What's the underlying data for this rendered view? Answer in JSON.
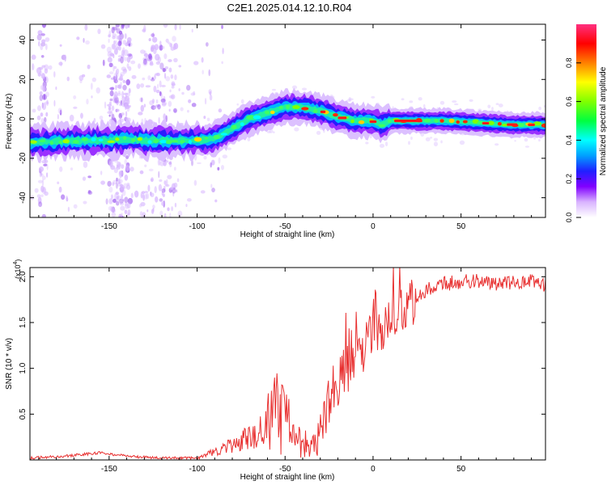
{
  "title": "C2E1.2025.014.12.10.R04",
  "chart_data": [
    {
      "type": "heatmap",
      "xlabel": "Height of straight line (km)",
      "ylabel": "Frequency (Hz)",
      "xlim": [
        -195,
        98
      ],
      "ylim": [
        -50,
        48
      ],
      "xticks": [
        -150,
        -100,
        -50,
        0,
        50
      ],
      "yticks": [
        -40,
        -20,
        0,
        20,
        40
      ],
      "ridge": {
        "x": [
          -195,
          -170,
          -150,
          -140,
          -130,
          -110,
          -100,
          -90,
          -80,
          -70,
          -60,
          -50,
          -40,
          -35,
          -30,
          -20,
          -10,
          0,
          5,
          10,
          20,
          40,
          60,
          80,
          98
        ],
        "y": [
          -12,
          -11,
          -11,
          -10,
          -11,
          -11,
          -11,
          -10,
          -5,
          0,
          3,
          6,
          6,
          5,
          4,
          1,
          -1,
          -1,
          -3,
          -1,
          -1,
          -1,
          -2,
          -3,
          -3
        ]
      },
      "colorbar": {
        "label": "Normalized spectral amplitude",
        "ticks": [
          "0.0",
          "0.2",
          "0.4",
          "0.6",
          "0.8"
        ],
        "range": [
          0,
          1
        ]
      }
    },
    {
      "type": "line",
      "xlabel": "Height of straight line (km)",
      "ylabel": "SNR (10 * v/v)",
      "scale_note": "(x10",
      "scale_exp": "4",
      "scale_close": ")",
      "xlim": [
        -195,
        98
      ],
      "ylim": [
        0,
        2.1
      ],
      "xticks": [
        -150,
        -100,
        -50,
        0,
        50
      ],
      "yticks": [
        0.5,
        1.0,
        1.5,
        2.0
      ],
      "ytick_labels": [
        "0.5",
        "1.0",
        "1.5",
        "2.0"
      ],
      "series": [
        {
          "color": "#e83030",
          "anchors_x": [
            -195,
            -170,
            -155,
            -140,
            -120,
            -100,
            -95,
            -85,
            -75,
            -65,
            -58,
            -55,
            -52,
            -50,
            -45,
            -40,
            -35,
            -30,
            -27,
            -22,
            -15,
            -10,
            0,
            10,
            20,
            30,
            40,
            50,
            60,
            70,
            80,
            90,
            98
          ],
          "anchors_y": [
            0.02,
            0.05,
            0.08,
            0.04,
            0.02,
            0.02,
            0.05,
            0.12,
            0.2,
            0.32,
            0.45,
            0.55,
            0.48,
            0.35,
            0.22,
            0.15,
            0.12,
            0.25,
            0.55,
            0.8,
            1.0,
            1.1,
            1.35,
            1.55,
            1.7,
            1.85,
            1.92,
            1.95,
            1.95,
            1.93,
            1.93,
            1.95,
            1.9
          ]
        }
      ]
    }
  ]
}
